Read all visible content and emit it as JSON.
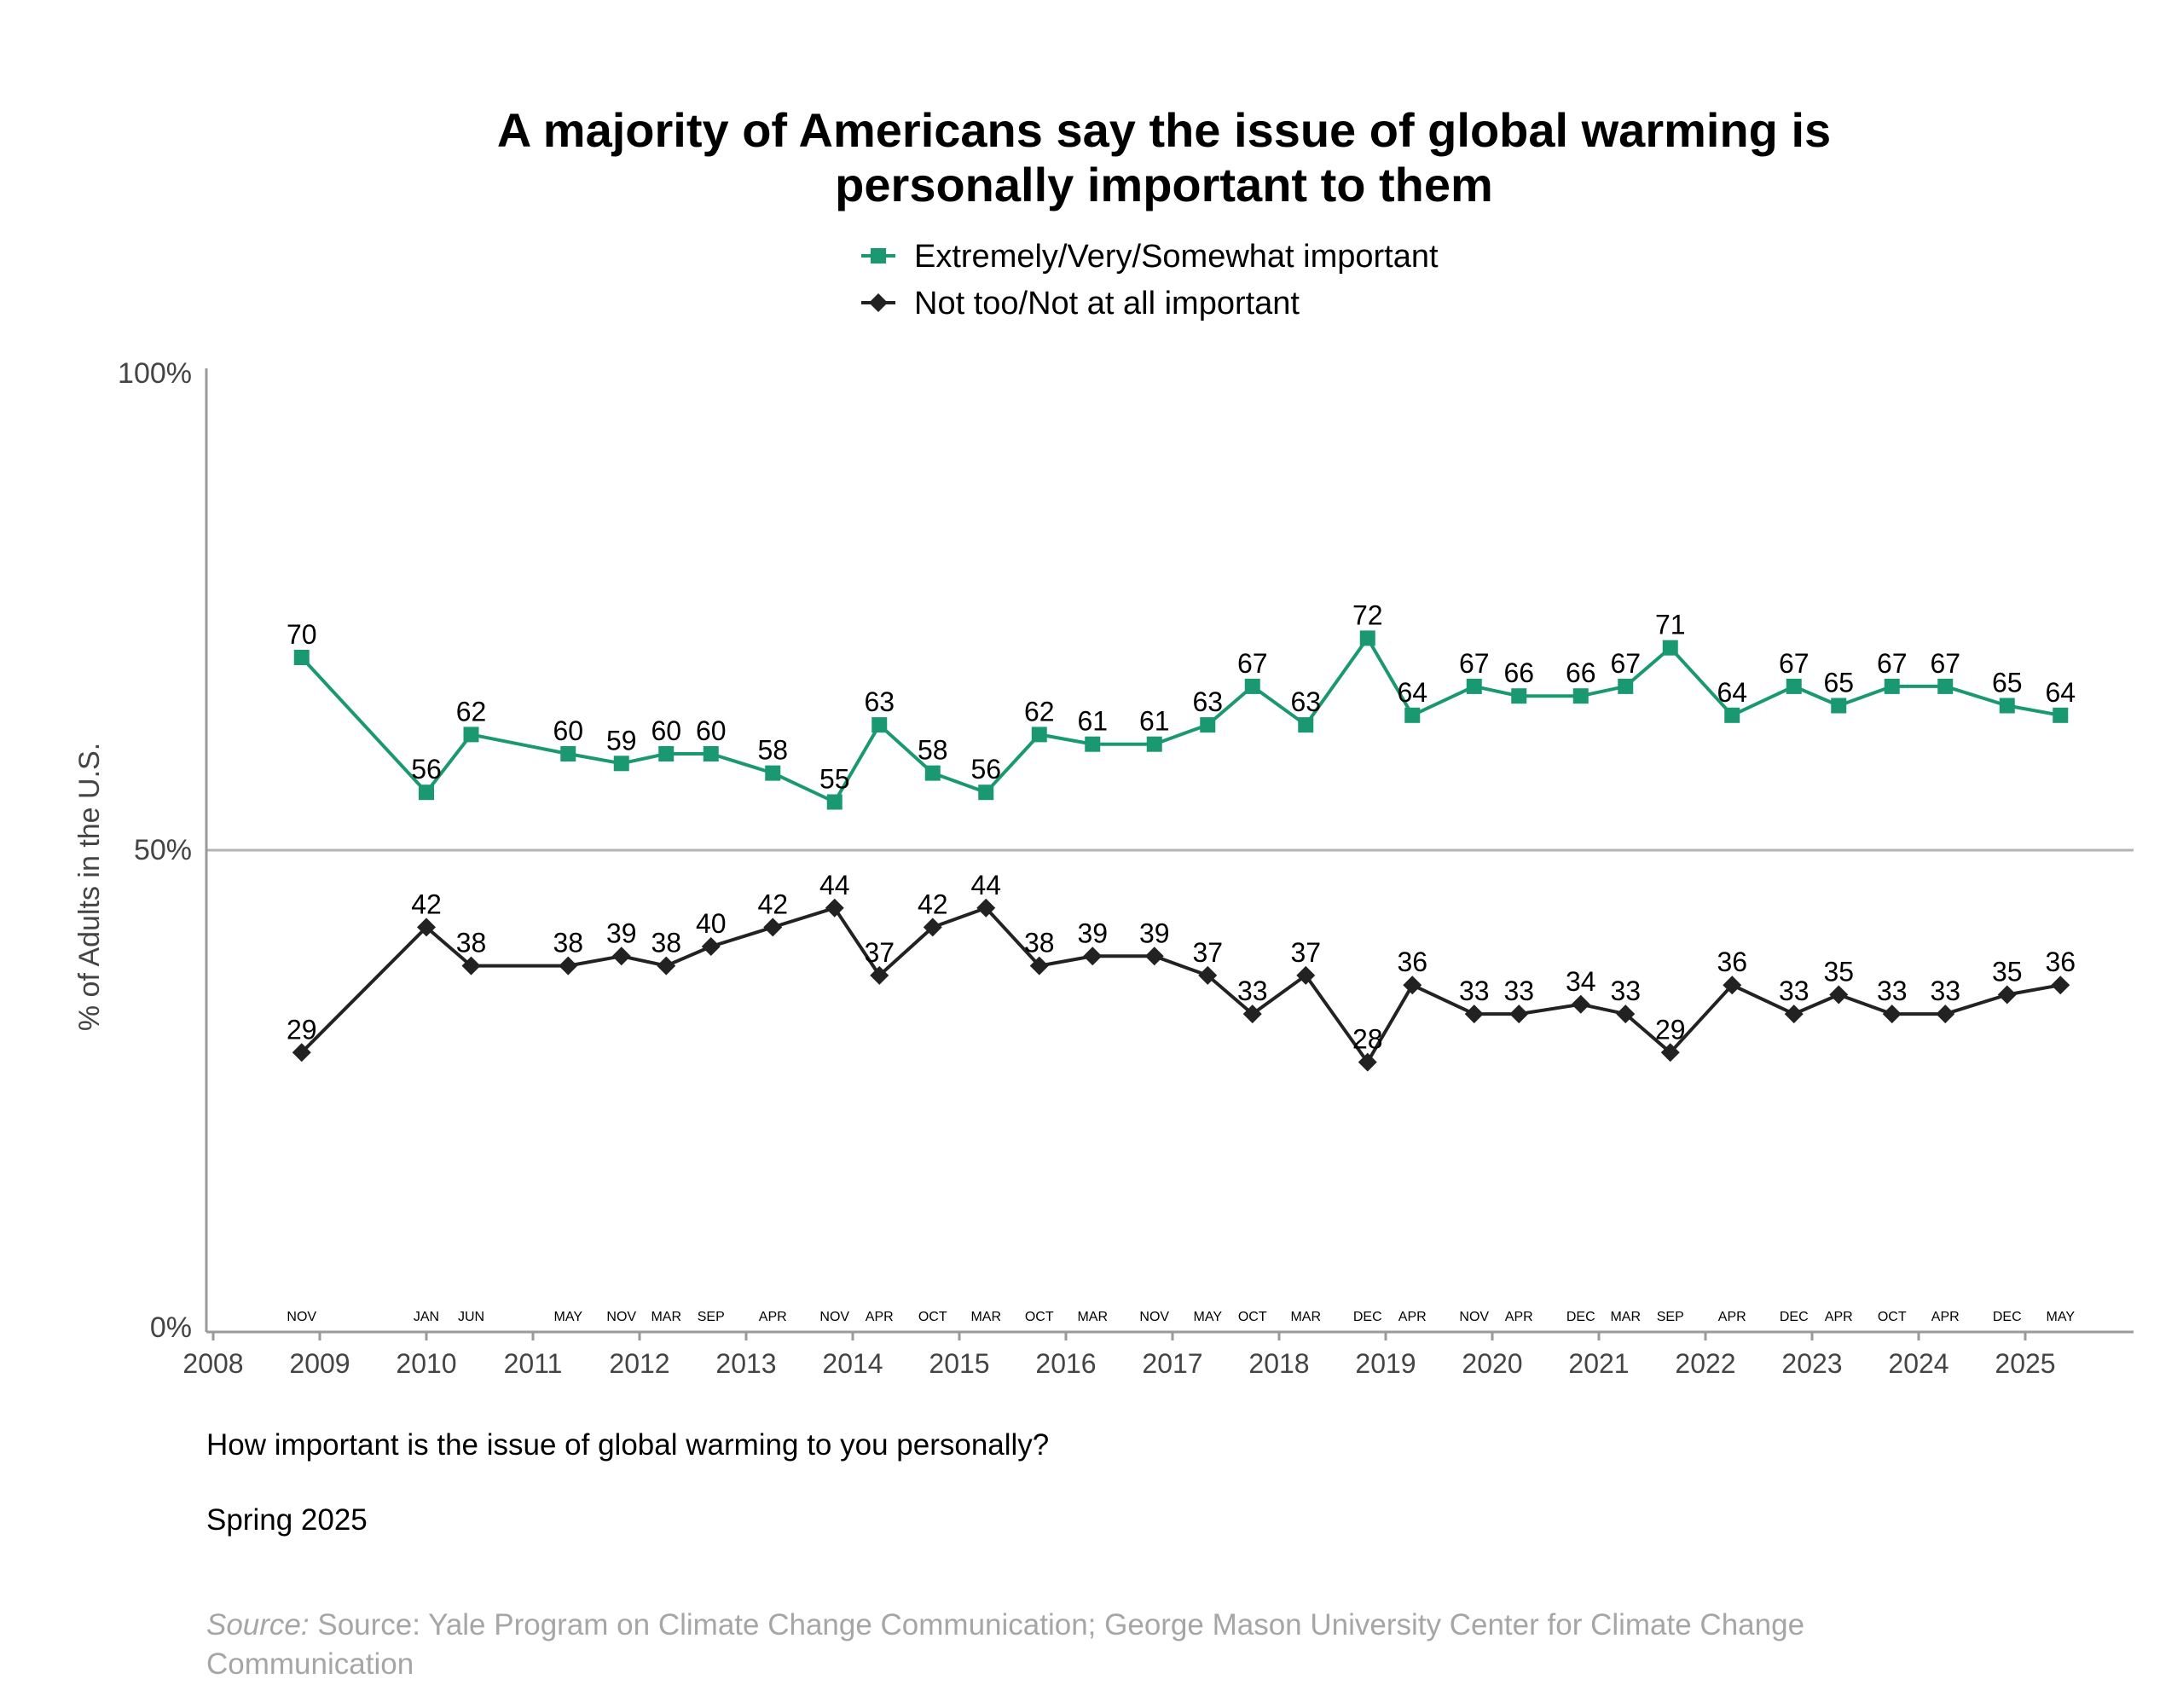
{
  "chart_data": {
    "type": "line",
    "title_lines": [
      "A majority of Americans say the issue of global warming is",
      "personally important to them"
    ],
    "ylabel": "% of Adults in the U.S.",
    "ylim": [
      0,
      100
    ],
    "yticks": [
      "0%",
      "50%",
      "100%"
    ],
    "xlim": [
      2008,
      2026
    ],
    "xticks": [
      "2008",
      "2009",
      "2010",
      "2011",
      "2012",
      "2013",
      "2014",
      "2015",
      "2016",
      "2017",
      "2018",
      "2019",
      "2020",
      "2021",
      "2022",
      "2023",
      "2024",
      "2025"
    ],
    "grid": "horizontal line at 50%",
    "legend_position": "top-center",
    "x": [
      2008.83,
      2010.0,
      2010.42,
      2011.33,
      2011.83,
      2012.25,
      2012.67,
      2013.25,
      2013.83,
      2014.25,
      2014.75,
      2015.25,
      2015.75,
      2016.25,
      2016.83,
      2017.33,
      2017.75,
      2018.25,
      2018.83,
      2019.25,
      2019.83,
      2020.25,
      2020.83,
      2021.25,
      2021.67,
      2022.25,
      2022.83,
      2023.25,
      2023.75,
      2024.25,
      2024.83,
      2025.33
    ],
    "months": [
      "NOV",
      "JAN",
      "JUN",
      "MAY",
      "NOV",
      "MAR",
      "SEP",
      "APR",
      "NOV",
      "APR",
      "OCT",
      "MAR",
      "OCT",
      "MAR",
      "NOV",
      "MAY",
      "OCT",
      "MAR",
      "DEC",
      "APR",
      "NOV",
      "APR",
      "DEC",
      "MAR",
      "SEP",
      "APR",
      "DEC",
      "APR",
      "OCT",
      "APR",
      "DEC",
      "MAY"
    ],
    "series": [
      {
        "name": "Extremely/Very/Somewhat important",
        "color": "#1a9870",
        "marker": "square",
        "values": [
          70,
          56,
          62,
          60,
          59,
          60,
          60,
          58,
          55,
          63,
          58,
          56,
          62,
          61,
          61,
          63,
          67,
          63,
          72,
          64,
          67,
          66,
          66,
          67,
          71,
          64,
          67,
          65,
          67,
          67,
          65,
          64
        ]
      },
      {
        "name": "Not too/Not at all important",
        "color": "#222222",
        "marker": "diamond",
        "values": [
          29,
          42,
          38,
          38,
          39,
          38,
          40,
          42,
          44,
          37,
          42,
          44,
          38,
          39,
          39,
          37,
          33,
          37,
          28,
          36,
          33,
          33,
          34,
          33,
          29,
          36,
          33,
          35,
          33,
          33,
          35,
          36
        ]
      }
    ],
    "question": "How important is the issue of global warming to you personally?",
    "period": "Spring 2025",
    "source_prefix": "Source:",
    "source_lines": [
      "Source: Yale Program on Climate Change Communication; George Mason University Center for Climate Change",
      "Communication"
    ]
  }
}
